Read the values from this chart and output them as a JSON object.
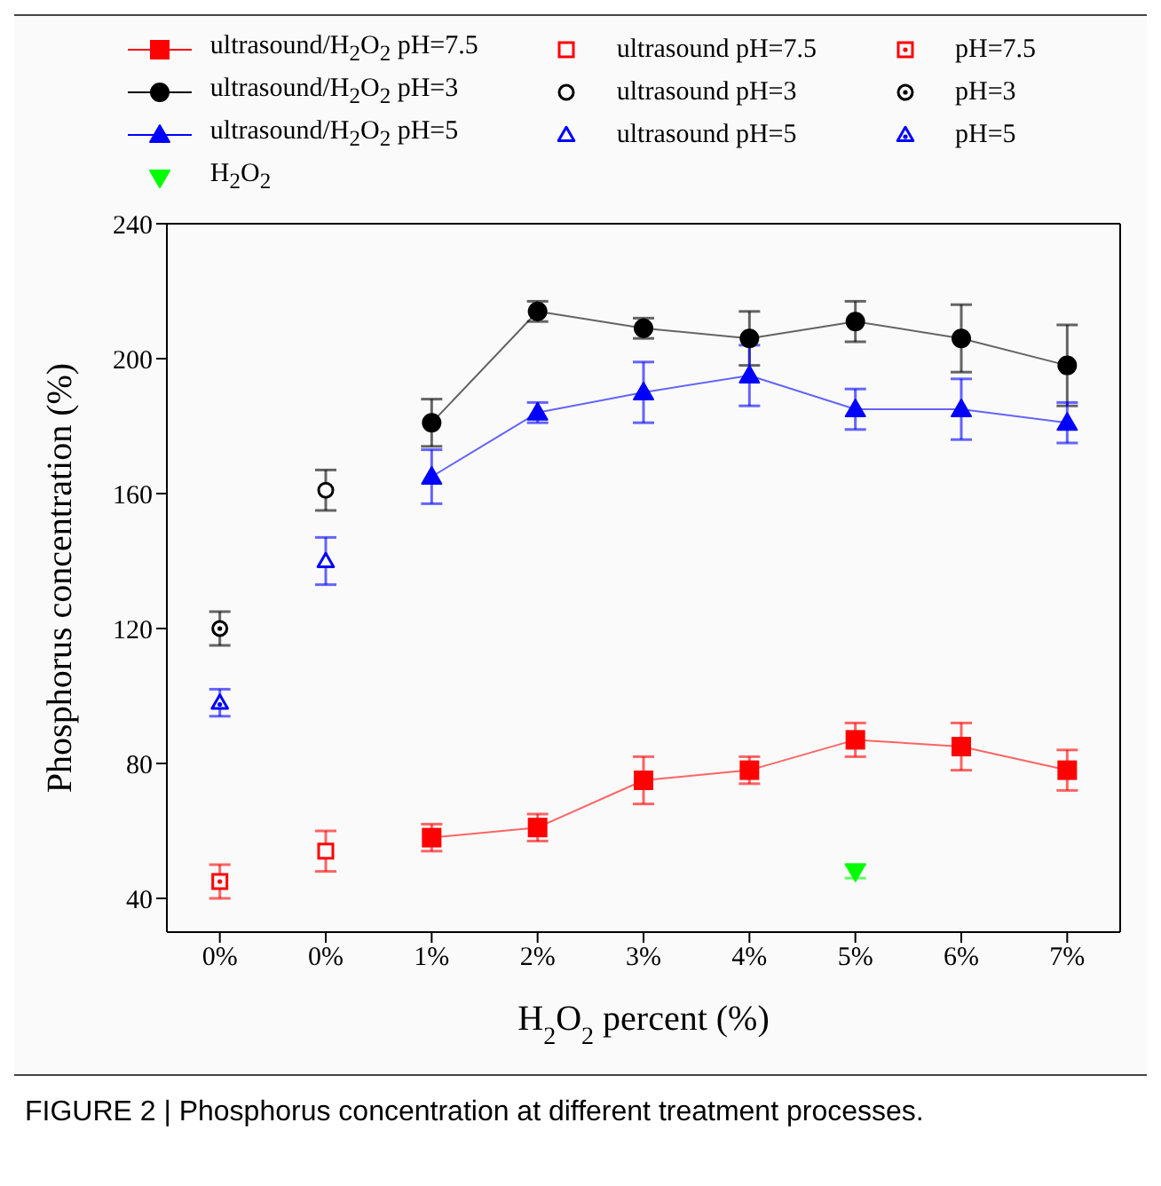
{
  "chart_data": {
    "type": "line",
    "xlabel": "H$_{2}$O$_{2}$ percent (%)",
    "ylabel": "Phosphorus concentration (%)",
    "categories": [
      "0%",
      "0%",
      "1%",
      "2%",
      "3%",
      "4%",
      "5%",
      "6%",
      "7%"
    ],
    "ylim": [
      30,
      240
    ],
    "yticks": [
      40,
      80,
      120,
      160,
      200,
      240
    ],
    "grid": false,
    "legend": "top",
    "annotations": [
      "FIGURE 2 | Phosphorus concentration at different treatment processes."
    ],
    "series": [
      {
        "name": "ultrasound/H$_{2}$O$_{2}$ pH=7.5",
        "marker": "square",
        "color": "#ff0000",
        "values": [
          null,
          null,
          58,
          61,
          75,
          78,
          87,
          85,
          78
        ],
        "errors": [
          null,
          null,
          4,
          4,
          7,
          4,
          5,
          7,
          6
        ]
      },
      {
        "name": "ultrasound/H$_{2}$O$_{2}$ pH=3",
        "marker": "circle",
        "color": "#000000",
        "values": [
          null,
          null,
          181,
          214,
          209,
          206,
          211,
          206,
          198
        ],
        "errors": [
          null,
          null,
          7,
          3,
          3,
          8,
          6,
          10,
          12
        ]
      },
      {
        "name": "ultrasound/H$_{2}$O$_{2}$ pH=5",
        "marker": "triangle",
        "color": "#0000ff",
        "values": [
          null,
          null,
          165,
          184,
          190,
          195,
          185,
          185,
          181
        ],
        "errors": [
          null,
          null,
          8,
          3,
          9,
          9,
          6,
          9,
          6
        ]
      },
      {
        "name": "H$_{2}$O$_{2}$",
        "type": "scatter",
        "marker": "triangle-down",
        "color": "#00ff00",
        "values": [
          null,
          null,
          null,
          null,
          null,
          null,
          48,
          null,
          null
        ],
        "errors": [
          null,
          null,
          null,
          null,
          null,
          null,
          2,
          null,
          null
        ]
      },
      {
        "name": "ultrasound pH=7.5",
        "type": "scatter",
        "marker": "square-open",
        "color": "#ff0000",
        "values": [
          null,
          54,
          null,
          null,
          null,
          null,
          null,
          null,
          null
        ],
        "errors": [
          null,
          6,
          null,
          null,
          null,
          null,
          null,
          null,
          null
        ]
      },
      {
        "name": "ultrasound pH=3",
        "type": "scatter",
        "marker": "circle-open",
        "color": "#000000",
        "values": [
          null,
          161,
          null,
          null,
          null,
          null,
          null,
          null,
          null
        ],
        "errors": [
          null,
          6,
          null,
          null,
          null,
          null,
          null,
          null,
          null
        ]
      },
      {
        "name": "ultrasound pH=5",
        "type": "scatter",
        "marker": "triangle-open",
        "color": "#0000ff",
        "values": [
          null,
          140,
          null,
          null,
          null,
          null,
          null,
          null,
          null
        ],
        "errors": [
          null,
          7,
          null,
          null,
          null,
          null,
          null,
          null,
          null
        ]
      },
      {
        "name": "pH=7.5",
        "type": "scatter",
        "marker": "square-dot",
        "color": "#ff0000",
        "values": [
          45,
          null,
          null,
          null,
          null,
          null,
          null,
          null,
          null
        ],
        "errors": [
          5,
          null,
          null,
          null,
          null,
          null,
          null,
          null,
          null
        ]
      },
      {
        "name": "pH=3",
        "type": "scatter",
        "marker": "circle-dot",
        "color": "#000000",
        "values": [
          120,
          null,
          null,
          null,
          null,
          null,
          null,
          null,
          null
        ],
        "errors": [
          5,
          null,
          null,
          null,
          null,
          null,
          null,
          null,
          null
        ]
      },
      {
        "name": "pH=5",
        "type": "scatter",
        "marker": "triangle-dot",
        "color": "#0000ff",
        "values": [
          98,
          null,
          null,
          null,
          null,
          null,
          null,
          null,
          null
        ],
        "errors": [
          4,
          null,
          null,
          null,
          null,
          null,
          null,
          null,
          null
        ]
      }
    ]
  }
}
